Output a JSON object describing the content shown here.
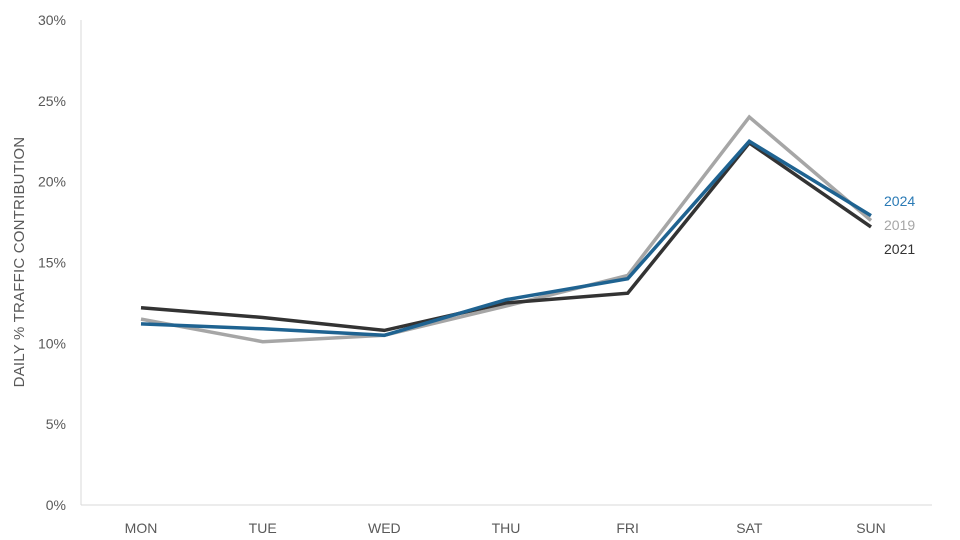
{
  "chart_data": {
    "type": "line",
    "categories": [
      "MON",
      "TUE",
      "WED",
      "THU",
      "FRI",
      "SAT",
      "SUN"
    ],
    "ylabel": "DAILY % TRAFFIC CONTRIBUTION",
    "ylim": [
      0,
      30
    ],
    "yticks": [
      "0%",
      "5%",
      "10%",
      "15%",
      "20%",
      "25%",
      "30%"
    ],
    "grid": false,
    "series": [
      {
        "name": "2019",
        "color": "#a6a6a6",
        "values": [
          11.5,
          10.1,
          10.5,
          12.3,
          14.2,
          24.0,
          17.6
        ]
      },
      {
        "name": "2021",
        "color": "#333333",
        "values": [
          12.2,
          11.6,
          10.8,
          12.5,
          13.1,
          22.4,
          17.2
        ]
      },
      {
        "name": "2024",
        "color": "#1f6391",
        "label_color": "#2a7ab5",
        "values": [
          11.2,
          10.9,
          10.5,
          12.7,
          14.0,
          22.5,
          17.9
        ]
      }
    ]
  }
}
